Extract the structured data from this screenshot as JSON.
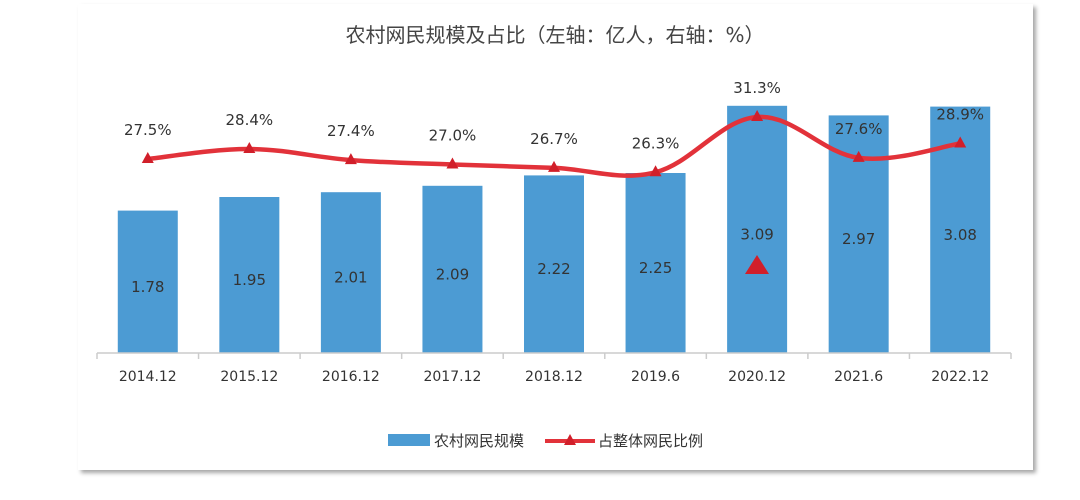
{
  "chart_data": {
    "type": "bar+line",
    "title": "农村网民规模及占比（左轴：亿人，右轴：%）",
    "categories": [
      "2014.12",
      "2015.12",
      "2016.12",
      "2017.12",
      "2018.12",
      "2019.6",
      "2020.12",
      "2021.6",
      "2022.12"
    ],
    "series": [
      {
        "name": "农村网民规模",
        "type": "bar",
        "axis": "left",
        "color": "#4c9bd3",
        "values": [
          1.78,
          1.95,
          2.01,
          2.09,
          2.22,
          2.25,
          3.09,
          2.97,
          3.08
        ],
        "labels": [
          "1.78",
          "1.95",
          "2.01",
          "2.09",
          "2.22",
          "2.25",
          "3.09",
          "2.97",
          "3.08"
        ]
      },
      {
        "name": "占整体网民比例",
        "type": "line",
        "axis": "right",
        "color": "#e2323a",
        "marker": "triangle",
        "values": [
          27.5,
          28.4,
          27.4,
          27.0,
          26.7,
          26.3,
          31.3,
          27.6,
          28.9
        ],
        "labels": [
          "27.5%",
          "28.4%",
          "27.4%",
          "27.0%",
          "26.7%",
          "26.3%",
          "31.3%",
          "27.6%",
          "28.9%"
        ]
      }
    ],
    "legend": "bottom",
    "grid": false
  }
}
